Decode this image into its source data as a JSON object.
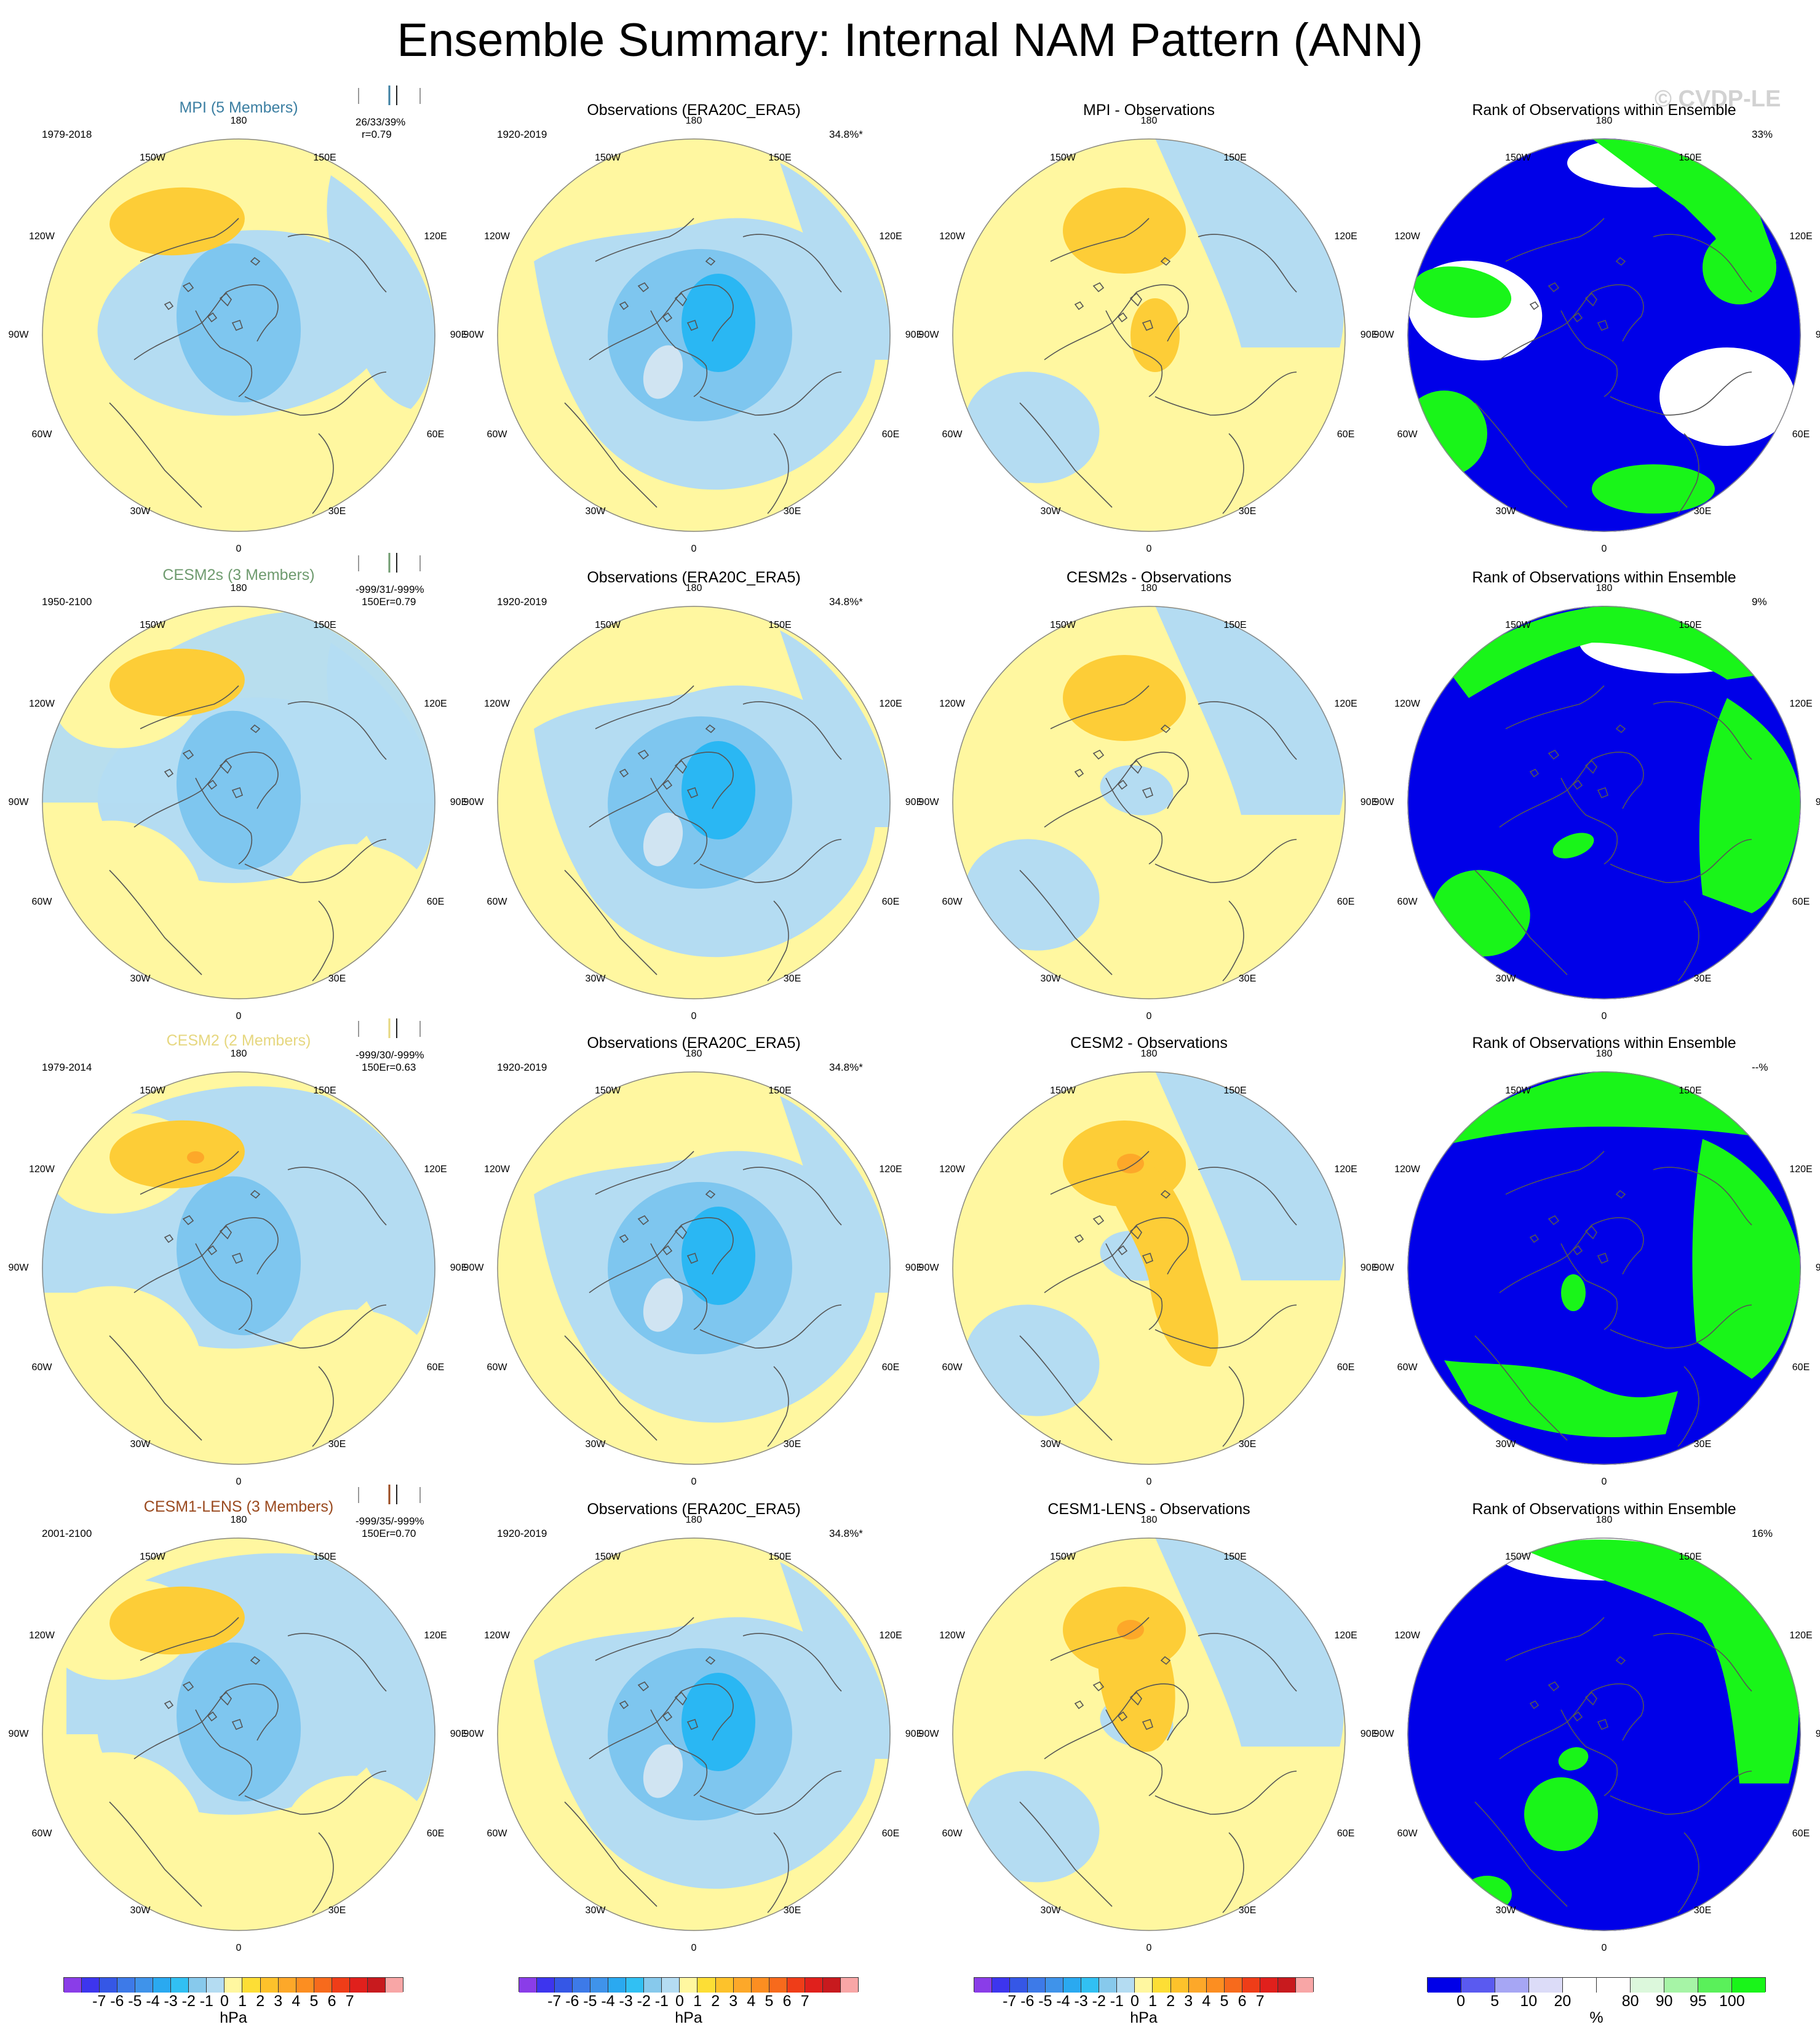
{
  "title": "Ensemble Summary: Internal NAM Pattern (ANN)",
  "watermark": "© CVDP-LE",
  "colors": {
    "land_outline": "#555555",
    "yellow": "#fff7a0",
    "lightblue": "#b4dcf2",
    "medblue": "#7ec6ef",
    "deepblue": "#2ab7f3",
    "orange": "#fdcd37",
    "deeporange": "#fda829",
    "rank_blue": "#0000e8",
    "rank_green": "#19f519",
    "rank_white": "#ffffff"
  },
  "lon_labels": [
    "180",
    "150W",
    "150E",
    "120W",
    "120E",
    "90W",
    "90E",
    "60W",
    "60E",
    "30W",
    "30E",
    "0"
  ],
  "rows": [
    {
      "model_title": "MPI (5 Members)",
      "model_color": "#3c7fa2",
      "model_years": "1979-2018",
      "stats_line1": "26/33/39%",
      "stats_line2": "r=0.79",
      "obs_title": "Observations (ERA20C_ERA5)",
      "obs_years": "1920-2019",
      "obs_pct": "34.8%*",
      "diff_title": "MPI - Observations",
      "rank_title": "Rank of Observations within Ensemble",
      "rank_pct": "33%"
    },
    {
      "model_title": "CESM2s (3 Members)",
      "model_color": "#6f9b6f",
      "model_years": "1950-2100",
      "stats_line1": "-999/31/-999%",
      "stats_line2": "150Er=0.79",
      "obs_title": "Observations (ERA20C_ERA5)",
      "obs_years": "1920-2019",
      "obs_pct": "34.8%*",
      "diff_title": "CESM2s - Observations",
      "rank_title": "Rank of Observations within Ensemble",
      "rank_pct": "9%"
    },
    {
      "model_title": "CESM2 (2 Members)",
      "model_color": "#e6d77f",
      "model_years": "1979-2014",
      "stats_line1": "-999/30/-999%",
      "stats_line2": "150Er=0.63",
      "obs_title": "Observations (ERA20C_ERA5)",
      "obs_years": "1920-2019",
      "obs_pct": "34.8%*",
      "diff_title": "CESM2 - Observations",
      "rank_title": "Rank of Observations within Ensemble",
      "rank_pct": "--%"
    },
    {
      "model_title": "CESM1-LENS (3 Members)",
      "model_color": "#9a4a1f",
      "model_years": "2001-2100",
      "stats_line1": "-999/35/-999%",
      "stats_line2": "150Er=0.70",
      "obs_title": "Observations (ERA20C_ERA5)",
      "obs_years": "1920-2019",
      "obs_pct": "34.8%*",
      "diff_title": "CESM1-LENS - Observations",
      "rank_title": "Rank of Observations within Ensemble",
      "rank_pct": "16%"
    }
  ],
  "colorbar_hpa": {
    "colors": [
      "#8a3de8",
      "#3d35ee",
      "#3557e6",
      "#3d7ae8",
      "#3f93ea",
      "#2aa9f0",
      "#31c0f3",
      "#87c9ec",
      "#b4dcf2",
      "#fff7a0",
      "#fdde35",
      "#fdc22b",
      "#fda829",
      "#fc8e21",
      "#f76a1c",
      "#ef3d18",
      "#e0201c",
      "#c81a1e",
      "#f8a6a6"
    ],
    "ticks": [
      "-7",
      "-6",
      "-5",
      "-4",
      "-3",
      "-2",
      "-1",
      "0",
      "1",
      "2",
      "3",
      "4",
      "5",
      "6",
      "7"
    ],
    "unit": "hPa"
  },
  "colorbar_rank": {
    "colors": [
      "#0000e8",
      "#5a5af0",
      "#a6a6f4",
      "#dcdcf8",
      "#ffffff",
      "#ffffff",
      "#dcf8dc",
      "#a6f4a6",
      "#5af05a",
      "#19f519"
    ],
    "ticks": [
      "0",
      "5",
      "10",
      "20",
      "80",
      "90",
      "95",
      "100"
    ],
    "unit": "%"
  }
}
